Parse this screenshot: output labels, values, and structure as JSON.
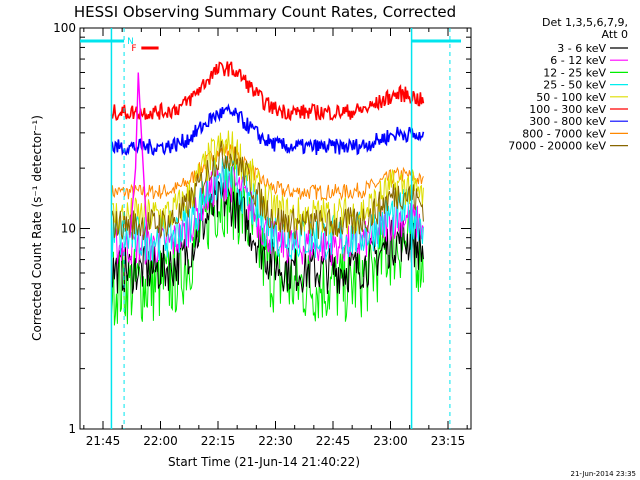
{
  "chart_data": {
    "type": "line",
    "title": "HESSI Observing Summary Count Rates, Corrected",
    "xlabel": "Start Time (21-Jun-14 21:40:22)",
    "ylabel": "Corrected Count Rate (s⁻¹ detector⁻¹)",
    "yscale": "log",
    "ylim": [
      1,
      100
    ],
    "xlim_minutes": [
      21.65,
      23.35
    ],
    "x_ticks": [
      "21:45",
      "22:00",
      "22:15",
      "22:30",
      "22:45",
      "23:00",
      "23:15"
    ],
    "y_ticks": [
      "1",
      "10",
      "100"
    ],
    "legend_header": [
      "Det 1,3,5,6,7,9,",
      "Att 0"
    ],
    "legend_position": "top-right",
    "footer_date": "21-Jun-2014 23:35",
    "flags": [
      {
        "label": "N",
        "color": "#00e5ee"
      },
      {
        "label": "F",
        "color": "#ff0000"
      }
    ],
    "series": [
      {
        "name": "3 - 6 keV",
        "color": "#000000"
      },
      {
        "name": "6 - 12 keV",
        "color": "#ff00ff"
      },
      {
        "name": "12 - 25 keV",
        "color": "#00ee00"
      },
      {
        "name": "25 - 50 keV",
        "color": "#00eeee"
      },
      {
        "name": "50 - 100 keV",
        "color": "#dddd00"
      },
      {
        "name": "100 - 300 keV",
        "color": "#ff0000"
      },
      {
        "name": "300 - 800 keV",
        "color": "#0000ff"
      },
      {
        "name": "800 - 7000 keV",
        "color": "#ff8800"
      },
      {
        "name": "7000 - 20000 keV",
        "color": "#886600"
      }
    ]
  }
}
